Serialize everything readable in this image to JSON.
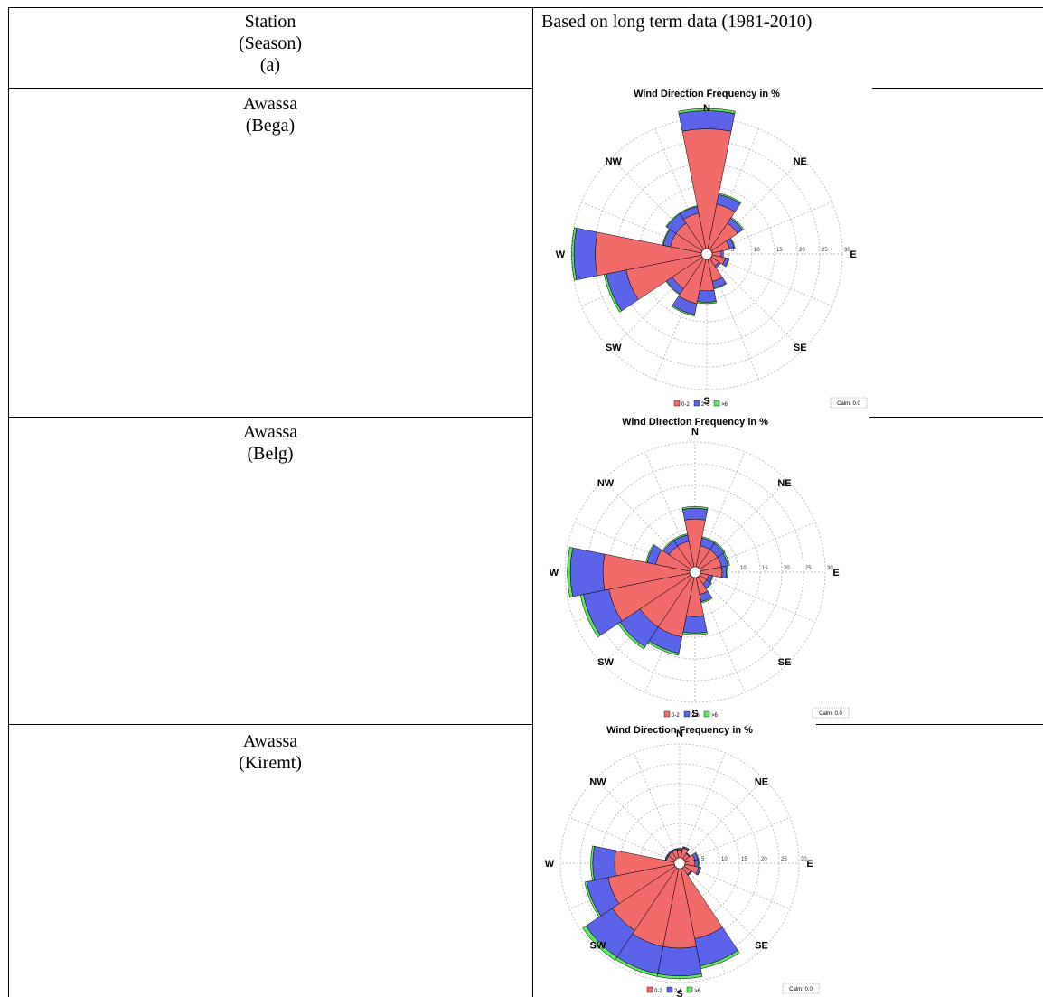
{
  "table": {
    "header_left": [
      "Station",
      "(Season)",
      "(a)"
    ],
    "header_right": "Based on long term data (1981-2010)",
    "rows": [
      {
        "station": "Awassa",
        "season": "(Bega)"
      },
      {
        "station": "Awassa",
        "season": "(Belg)"
      },
      {
        "station": "Awassa",
        "season": "(Kiremt)"
      }
    ]
  },
  "colors": {
    "bin1": "#f26b6b",
    "bin2": "#5b63e8",
    "bin3": "#5ee860",
    "grid": "#a9a9a9"
  },
  "chart_data": [
    {
      "type": "polar-stacked-bar",
      "title": "Wind Direction Frequency in %",
      "directions": [
        "N",
        "NE",
        "E",
        "SE",
        "S",
        "SW",
        "W",
        "NW"
      ],
      "radial_ticks": [
        "5",
        "10",
        "15",
        "20",
        "25",
        "30"
      ],
      "rmax": 30,
      "legend": [
        "0-2",
        "2-6",
        ">6"
      ],
      "calm_label": "Calm: 0.0",
      "sectors_deg": [
        0,
        22.5,
        45,
        67.5,
        90,
        112.5,
        135,
        157.5,
        180,
        202.5,
        225,
        247.5,
        270,
        292.5,
        315,
        337.5
      ],
      "series": [
        {
          "name": "0-2",
          "values": [
            26.5,
            10,
            7,
            4,
            2,
            3,
            2,
            5,
            7,
            10,
            8,
            17,
            23.5,
            7,
            7,
            8
          ]
        },
        {
          "name": "2-6",
          "values": [
            4,
            2.2,
            1.3,
            1,
            0.5,
            0.7,
            0.5,
            1.5,
            2.5,
            2.5,
            1.5,
            4.5,
            4.7,
            1.6,
            2.5,
            1.5
          ]
        },
        {
          "name": ">6",
          "values": [
            0.5,
            0.3,
            0.3,
            0.2,
            0,
            0.2,
            0,
            0.2,
            0.3,
            0.3,
            0.2,
            0.5,
            0.5,
            0.2,
            0.2,
            0.2
          ]
        }
      ]
    },
    {
      "type": "polar-stacked-bar",
      "title": "Wind Direction Frequency in %",
      "directions": [
        "N",
        "NE",
        "E",
        "SE",
        "S",
        "SW",
        "W",
        "NW"
      ],
      "radial_ticks": [
        "5",
        "10",
        "15",
        "20",
        "25",
        "30"
      ],
      "rmax": 30,
      "legend": [
        "0-2",
        "2-6",
        ">6"
      ],
      "calm_label": "Calm: 0.0",
      "sectors_deg": [
        0,
        22.5,
        45,
        67.5,
        90,
        112.5,
        135,
        157.5,
        180,
        202.5,
        225,
        247.5,
        270,
        292.5,
        315,
        337.5
      ],
      "series": [
        {
          "name": "0-2",
          "values": [
            11,
            5,
            5,
            5,
            5,
            2,
            2,
            4,
            9,
            14,
            14,
            19,
            20,
            8,
            6,
            6
          ]
        },
        {
          "name": "2-6",
          "values": [
            2.5,
            1.8,
            1.8,
            1.5,
            1,
            0.8,
            1.2,
            1.7,
            3.8,
            3.8,
            5.5,
            6,
            7.5,
            2,
            1.5,
            1.5
          ]
        },
        {
          "name": ">6",
          "values": [
            0.4,
            0.3,
            0.3,
            0.4,
            0.3,
            0.2,
            0.2,
            0.3,
            0.4,
            0.5,
            0.6,
            0.7,
            0.7,
            0.3,
            0.3,
            0.3
          ]
        }
      ]
    },
    {
      "type": "polar-stacked-bar",
      "title": "Wind Direction Frequency in %",
      "directions": [
        "N",
        "NE",
        "E",
        "SE",
        "S",
        "SW",
        "W",
        "NW"
      ],
      "radial_ticks": [
        "5",
        "10",
        "15",
        "20",
        "25",
        "30"
      ],
      "rmax": 30,
      "legend": [
        "0-2",
        "2-6",
        ">6"
      ],
      "calm_label": "Calm: 0.0",
      "sectors_deg": [
        0,
        22.5,
        45,
        67.5,
        90,
        112.5,
        135,
        157.5,
        180,
        202.5,
        225,
        247.5,
        270,
        292.5,
        315,
        337.5
      ],
      "series": [
        {
          "name": "0-2",
          "values": [
            2,
            2.5,
            1.5,
            2.5,
            2.5,
            3.5,
            2,
            18,
            20,
            20,
            19,
            17,
            15,
            2,
            2,
            2
          ]
        },
        {
          "name": "2-6",
          "values": [
            0.3,
            0.3,
            0.2,
            0.8,
            0.8,
            0.5,
            0.3,
            7,
            7,
            7,
            8,
            5.5,
            5.5,
            0.3,
            0.3,
            0.3
          ]
        },
        {
          "name": ">6",
          "values": [
            0.1,
            0.1,
            0.1,
            0.2,
            0.2,
            0.1,
            0.1,
            0.7,
            0.7,
            0.7,
            1,
            0.5,
            0.5,
            0.1,
            0.1,
            0.1
          ]
        }
      ]
    }
  ]
}
